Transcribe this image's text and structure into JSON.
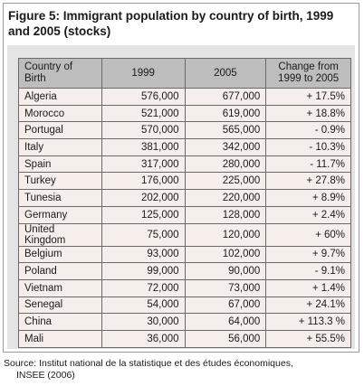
{
  "title": "Figure 5: Immigrant population by country of birth, 1999 and 2005 (stocks)",
  "table": {
    "header": [
      "Country of Birth",
      "1999",
      "2005",
      "Change from 1999 to 2005"
    ],
    "rows": [
      [
        "Algeria",
        "576,000",
        "677,000",
        "+ 17.5%"
      ],
      [
        "Morocco",
        "521,000",
        "619,000",
        "+ 18.8%"
      ],
      [
        "Portugal",
        "570,000",
        "565,000",
        "- 0.9%"
      ],
      [
        "Italy",
        "381,000",
        "342,000",
        "- 10.3%"
      ],
      [
        "Spain",
        "317,000",
        "280,000",
        "- 11.7%"
      ],
      [
        "Turkey",
        "176,000",
        "225,000",
        "+ 27.8%"
      ],
      [
        "Tunesia",
        "202,000",
        "220,000",
        "+ 8.9%"
      ],
      [
        "Germany",
        "125,000",
        "128,000",
        "+ 2.4%"
      ],
      [
        "United Kingdom",
        "75,000",
        "120,000",
        "+ 60%"
      ],
      [
        "Belgium",
        "93,000",
        "102,000",
        "+ 9.7%"
      ],
      [
        "Poland",
        "99,000",
        "90,000",
        "- 9.1%"
      ],
      [
        "Vietnam",
        "72,000",
        "73,000",
        "+ 1.4%"
      ],
      [
        "Senegal",
        "54,000",
        "67,000",
        "+ 24.1%"
      ],
      [
        "China",
        "30,000",
        "64,000",
        "+ 113.3 %"
      ],
      [
        "Mali",
        "36,000",
        "56,000",
        "+ 55.5%"
      ]
    ]
  },
  "source": [
    "Source: Institut national de la statistique et des études économiques,",
    "INSEE (2006)"
  ]
}
